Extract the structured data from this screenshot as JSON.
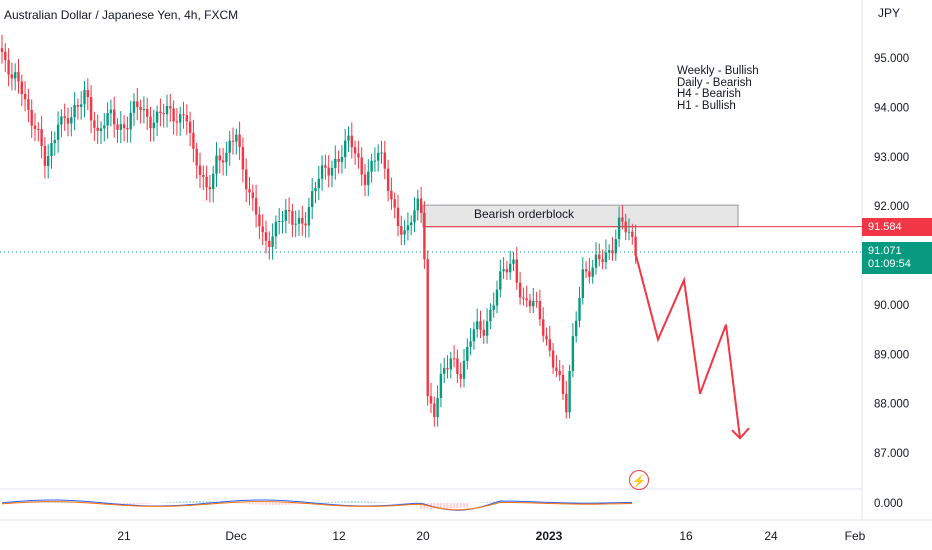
{
  "header": {
    "title": "Australian Dollar / Japanese Yen, 4h, FXCM",
    "currency": "JPY"
  },
  "bias_notes": [
    "Weekly - Bullish",
    "Daily - Bearish",
    "H4 - Bearish",
    "H1 - Bullish"
  ],
  "annotation": {
    "orderblock_label": "Bearish orderblock"
  },
  "price_tags": {
    "level": "91.584",
    "last_price": "91.071",
    "countdown": "01:09:54"
  },
  "colors": {
    "up": "#089981",
    "down": "#f23645",
    "projection": "#f23645",
    "orderblock_fill": "#e6e6e6",
    "macd": "#2962ff",
    "signal": "#ff6d00"
  },
  "icons": [
    "lightning-icon"
  ],
  "chart_data": {
    "type": "candlestick",
    "y_axis_ticks": [
      "95.000",
      "94.000",
      "93.000",
      "92.000",
      "91.000",
      "90.000",
      "89.000",
      "88.000",
      "87.000"
    ],
    "ylim": [
      86.6,
      96.3
    ],
    "x_axis_labels": [
      "21",
      "Dec",
      "12",
      "20",
      "2023",
      "16",
      "24",
      "Feb"
    ],
    "indicator_tick": "0.000",
    "orderblock": {
      "top": 92.0,
      "bottom": 91.6,
      "label": "Bearish orderblock"
    },
    "horizontal_level": 91.584,
    "last_price_line": 91.071,
    "projection_path": [
      91.0,
      89.3,
      90.5,
      88.2,
      89.6,
      87.3
    ],
    "price_path": [
      [
        0,
        95.2
      ],
      [
        12,
        94.4
      ],
      [
        20,
        94.6
      ],
      [
        32,
        93.8
      ],
      [
        46,
        92.7
      ],
      [
        58,
        93.9
      ],
      [
        72,
        93.6
      ],
      [
        86,
        94.5
      ],
      [
        98,
        93.3
      ],
      [
        112,
        93.9
      ],
      [
        126,
        93.6
      ],
      [
        140,
        94.0
      ],
      [
        156,
        93.8
      ],
      [
        170,
        93.8
      ],
      [
        186,
        94.0
      ],
      [
        194,
        92.8
      ],
      [
        206,
        92.4
      ],
      [
        216,
        93.0
      ],
      [
        226,
        92.8
      ],
      [
        236,
        93.6
      ],
      [
        244,
        92.8
      ],
      [
        252,
        92.0
      ],
      [
        264,
        91.2
      ],
      [
        278,
        91.8
      ],
      [
        292,
        91.6
      ],
      [
        306,
        91.9
      ],
      [
        320,
        92.5
      ],
      [
        334,
        93.0
      ],
      [
        350,
        93.2
      ],
      [
        364,
        92.7
      ],
      [
        378,
        93.0
      ],
      [
        392,
        92.2
      ],
      [
        406,
        91.3
      ],
      [
        418,
        92.0
      ],
      [
        424,
        91.9
      ],
      [
        426,
        88.4
      ],
      [
        434,
        87.8
      ],
      [
        442,
        88.4
      ],
      [
        452,
        89.0
      ],
      [
        462,
        88.7
      ],
      [
        472,
        89.3
      ],
      [
        484,
        89.6
      ],
      [
        496,
        90.3
      ],
      [
        506,
        90.6
      ],
      [
        514,
        90.9
      ],
      [
        524,
        90.1
      ],
      [
        534,
        89.9
      ],
      [
        546,
        89.4
      ],
      [
        556,
        88.8
      ],
      [
        566,
        87.7
      ],
      [
        574,
        89.5
      ],
      [
        582,
        90.8
      ],
      [
        592,
        90.6
      ],
      [
        602,
        90.9
      ],
      [
        612,
        91.3
      ],
      [
        620,
        91.7
      ],
      [
        628,
        91.3
      ],
      [
        636,
        91.1
      ]
    ],
    "indicator": {
      "name_macd_color": "#2962ff",
      "name_signal_color": "#ff6d00"
    }
  }
}
